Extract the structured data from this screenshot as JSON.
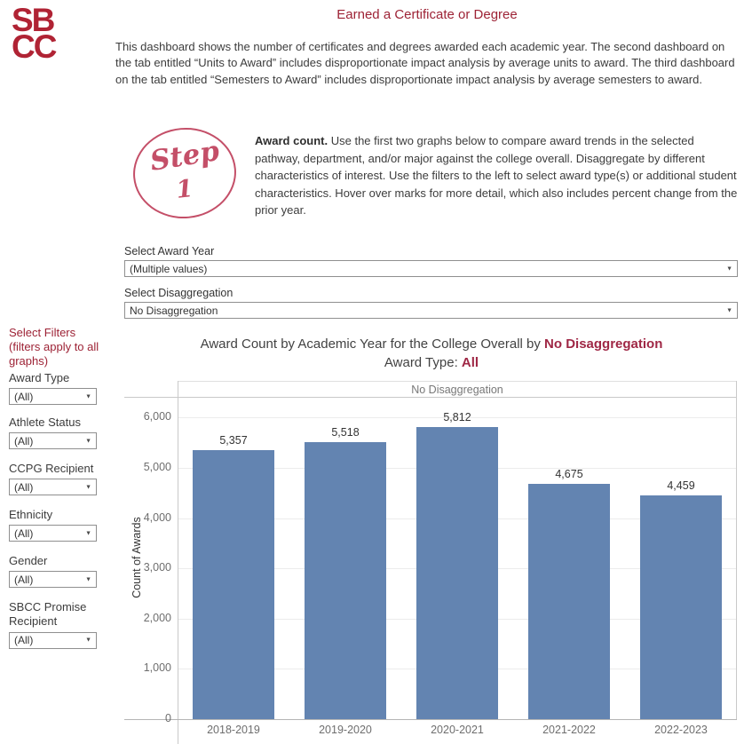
{
  "app": {
    "title": "Earned a Certificate or Degree"
  },
  "logo": {
    "line1": "SB",
    "line2": "CC"
  },
  "icons": {
    "dropdown_caret": "▼"
  },
  "intro": {
    "text": "This dashboard shows the number of certificates and degrees awarded each academic year. The second dashboard on the tab entitled “Units to Award” includes disproportionate impact analysis by average units to award. The third dashboard on the tab entitled “Semesters to Award” includes disproportionate impact analysis by average semesters to award."
  },
  "step": {
    "word": "Step",
    "number": "1",
    "lead": "Award count.",
    "body": " Use the first two graphs below to compare award trends in the selected pathway, department, and/or major against the college overall. Disaggregate by different characteristics of interest. Use the filters to the left to select award type(s) or additional student characteristics. Hover over marks for more detail, which also includes percent change from the prior year."
  },
  "selectors": {
    "award_year_label": "Select Award Year",
    "award_year_value": "(Multiple values)",
    "disaggregation_label": "Select Disaggregation",
    "disaggregation_value": "No Disaggregation"
  },
  "sidebar": {
    "heading": "Select Filters (filters apply to all graphs)",
    "filters": [
      {
        "label": "Award Type",
        "value": "(All)"
      },
      {
        "label": "Athlete Status",
        "value": "(All)"
      },
      {
        "label": "CCPG Recipient",
        "value": "(All)"
      },
      {
        "label": "Ethnicity",
        "value": "(All)"
      },
      {
        "label": "Gender",
        "value": "(All)"
      },
      {
        "label": "SBCC Promise Recipient",
        "value": "(All)"
      }
    ]
  },
  "chart_data": {
    "type": "bar",
    "title_prefix": "Award Count by Academic Year for the College Overall by ",
    "title_highlight": "No Disaggregation",
    "subtitle_prefix": "Award Type: ",
    "subtitle_highlight": "All",
    "pane_header": "No Disaggregation",
    "categories": [
      "2018-2019",
      "2019-2020",
      "2020-2021",
      "2021-2022",
      "2022-2023"
    ],
    "values": [
      5357,
      5518,
      5812,
      4675,
      4459
    ],
    "value_labels": [
      "5,357",
      "5,518",
      "5,812",
      "4,675",
      "4,459"
    ],
    "xlabel": "",
    "ylabel": "Count of Awards",
    "ylim": [
      0,
      6400
    ],
    "yticks": [
      0,
      1000,
      2000,
      3000,
      4000,
      5000,
      6000
    ],
    "ytick_labels": [
      "0",
      "1,000",
      "2,000",
      "3,000",
      "4,000",
      "5,000",
      "6,000"
    ],
    "grid": true,
    "legend": "none",
    "bar_color": "#6384b1"
  },
  "colors": {
    "brand_red": "#b02334",
    "accent_maroon": "#9d2235",
    "highlight_red": "#9f2745",
    "step_pink": "#c44f68",
    "bar_blue": "#6384b1"
  }
}
